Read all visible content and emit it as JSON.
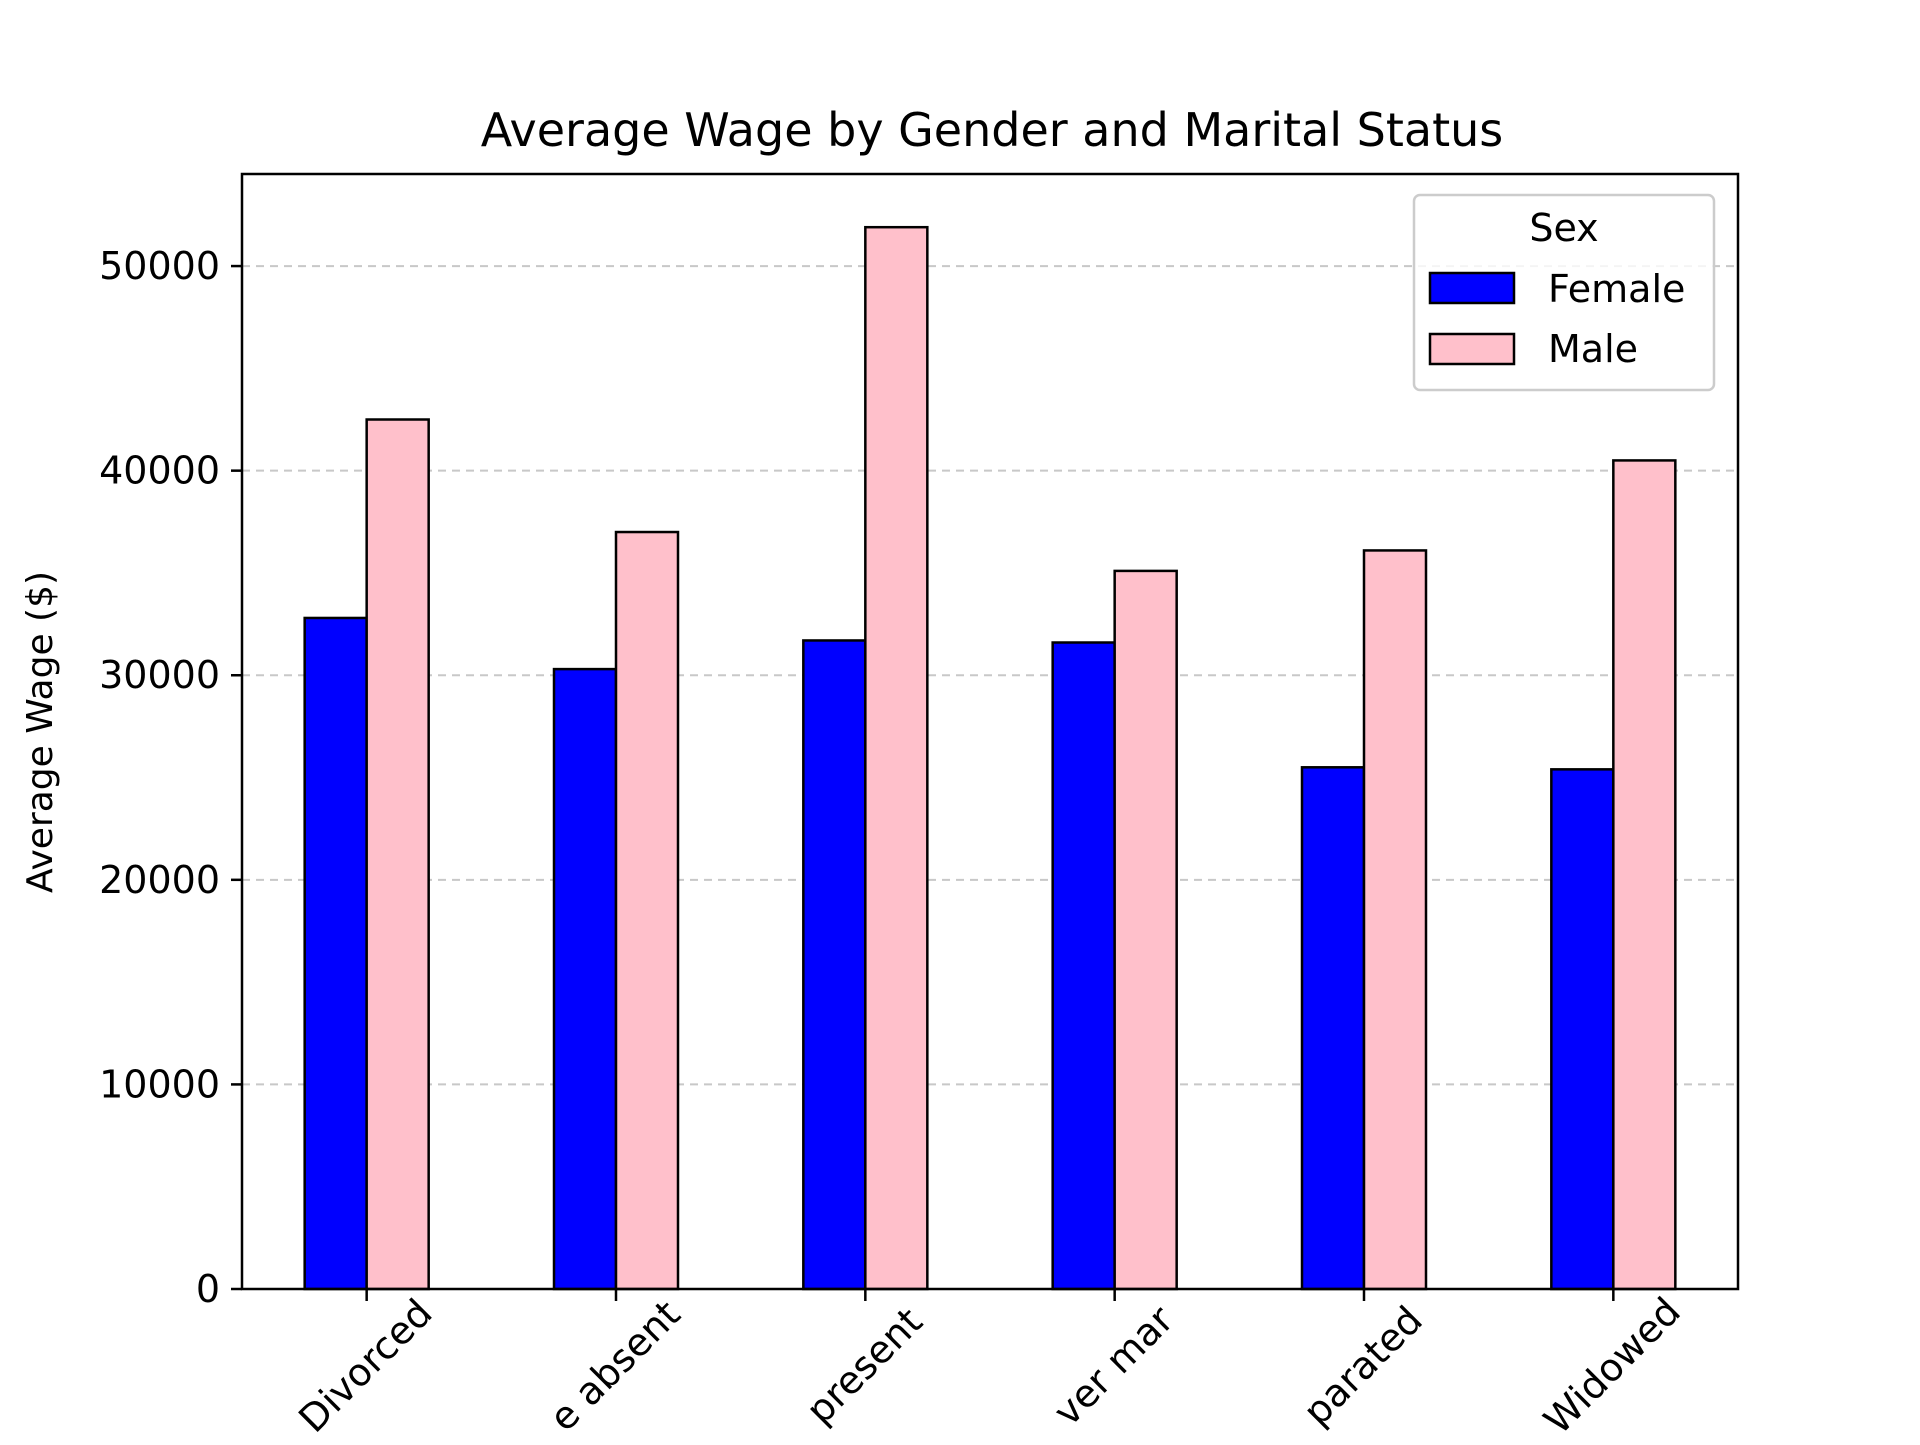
{
  "chart_data": {
    "type": "bar",
    "title": "Average Wage by Gender and Marital Status",
    "xlabel": "",
    "ylabel": "Average Wage ($)",
    "categories": [
      "Divorced",
      "Married-spouse absent",
      "Married-spouse present",
      "Never married",
      "Separated",
      "Widowed"
    ],
    "visible_category_labels": [
      "Divorced",
      "e absent",
      "present",
      "ver mar",
      "parated",
      "Widowed"
    ],
    "series": [
      {
        "name": "Female",
        "color": "#0000ff",
        "values": [
          32800,
          30300,
          31700,
          31600,
          25500,
          25400
        ]
      },
      {
        "name": "Male",
        "color": "#ffc0cb",
        "values": [
          42500,
          37000,
          51900,
          35100,
          36100,
          40500
        ]
      }
    ],
    "ylim": [
      0,
      54500
    ],
    "yticks": [
      0,
      10000,
      20000,
      30000,
      40000,
      50000
    ],
    "ytick_labels": [
      "0",
      "10000",
      "20000",
      "30000",
      "40000",
      "50000"
    ],
    "grid": "y dashed",
    "legend": {
      "title": "Sex",
      "placement": "top-right",
      "entries": [
        "Female",
        "Male"
      ]
    }
  }
}
